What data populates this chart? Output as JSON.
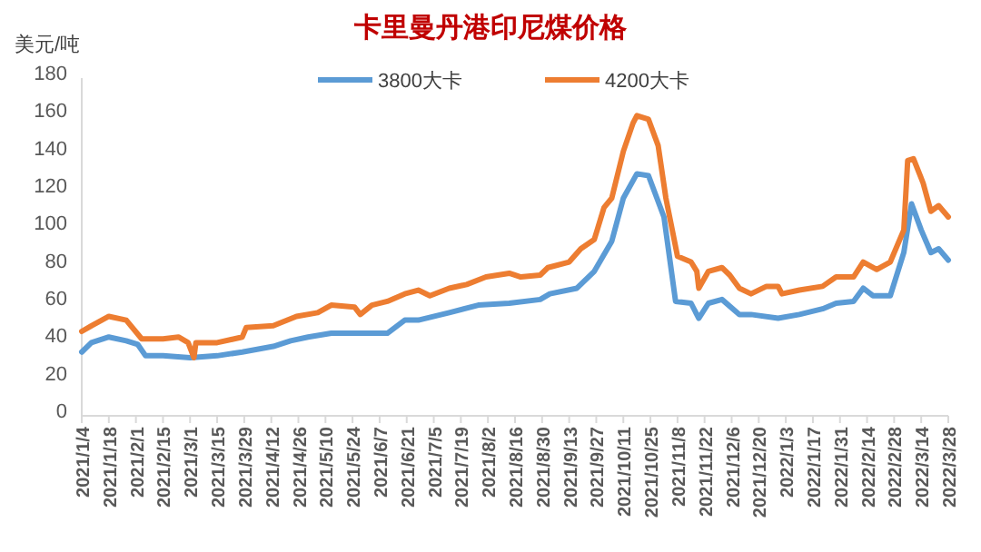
{
  "chart_data": {
    "type": "line",
    "title": "卡里曼丹港印尼煤价格",
    "ylabel": "美元/吨",
    "legend": "top",
    "grid": false,
    "marker": "none",
    "line_style": "solid",
    "ylim": [
      0,
      180
    ],
    "yticks": [
      0,
      20,
      40,
      60,
      80,
      100,
      120,
      140,
      160,
      180
    ],
    "xlim": [
      "2021-01-04",
      "2022-03-28"
    ],
    "xticks": [
      {
        "value": "2021-01-04",
        "label": "2021/1/4"
      },
      {
        "value": "2021-01-18",
        "label": "2021/1/18"
      },
      {
        "value": "2021-02-01",
        "label": "2021/2/1"
      },
      {
        "value": "2021-02-15",
        "label": "2021/2/15"
      },
      {
        "value": "2021-03-01",
        "label": "2021/3/1"
      },
      {
        "value": "2021-03-15",
        "label": "2021/3/15"
      },
      {
        "value": "2021-03-29",
        "label": "2021/3/29"
      },
      {
        "value": "2021-04-12",
        "label": "2021/4/12"
      },
      {
        "value": "2021-04-26",
        "label": "2021/4/26"
      },
      {
        "value": "2021-05-10",
        "label": "2021/5/10"
      },
      {
        "value": "2021-05-24",
        "label": "2021/5/24"
      },
      {
        "value": "2021-06-07",
        "label": "2021/6/7"
      },
      {
        "value": "2021-06-21",
        "label": "2021/6/21"
      },
      {
        "value": "2021-07-05",
        "label": "2021/7/5"
      },
      {
        "value": "2021-07-19",
        "label": "2021/7/19"
      },
      {
        "value": "2021-08-02",
        "label": "2021/8/2"
      },
      {
        "value": "2021-08-16",
        "label": "2021/8/16"
      },
      {
        "value": "2021-08-30",
        "label": "2021/8/30"
      },
      {
        "value": "2021-09-13",
        "label": "2021/9/13"
      },
      {
        "value": "2021-09-27",
        "label": "2021/9/27"
      },
      {
        "value": "2021-10-11",
        "label": "2021/10/11"
      },
      {
        "value": "2021-10-25",
        "label": "2021/10/25"
      },
      {
        "value": "2021-11-08",
        "label": "2021/11/8"
      },
      {
        "value": "2021-11-22",
        "label": "2021/11/22"
      },
      {
        "value": "2021-12-06",
        "label": "2021/12/6"
      },
      {
        "value": "2021-12-20",
        "label": "2021/12/20"
      },
      {
        "value": "2022-01-03",
        "label": "2022/1/3"
      },
      {
        "value": "2022-01-17",
        "label": "2022/1/17"
      },
      {
        "value": "2022-01-31",
        "label": "2022/1/31"
      },
      {
        "value": "2022-02-14",
        "label": "2022/2/14"
      },
      {
        "value": "2022-02-28",
        "label": "2022/2/28"
      },
      {
        "value": "2022-03-14",
        "label": "2022/3/14"
      },
      {
        "value": "2022-03-28",
        "label": "2022/3/28"
      }
    ],
    "series": [
      {
        "name": "3800大卡",
        "color": "#5b9bd5",
        "x": [
          "2021-01-04",
          "2021-01-09",
          "2021-01-18",
          "2021-01-27",
          "2021-02-02",
          "2021-02-06",
          "2021-02-15",
          "2021-03-01",
          "2021-03-15",
          "2021-03-28",
          "2021-04-13",
          "2021-04-22",
          "2021-05-01",
          "2021-05-13",
          "2021-06-11",
          "2021-06-20",
          "2021-06-27",
          "2021-07-13",
          "2021-07-28",
          "2021-08-13",
          "2021-08-29",
          "2021-09-03",
          "2021-09-17",
          "2021-09-26",
          "2021-10-05",
          "2021-10-11",
          "2021-10-18",
          "2021-10-24",
          "2021-11-01",
          "2021-11-07",
          "2021-11-15",
          "2021-11-19",
          "2021-11-24",
          "2021-12-01",
          "2021-12-10",
          "2021-12-16",
          "2021-12-30",
          "2022-01-10",
          "2022-01-22",
          "2022-01-29",
          "2022-02-07",
          "2022-02-12",
          "2022-02-17",
          "2022-02-26",
          "2022-03-05",
          "2022-03-09",
          "2022-03-14",
          "2022-03-19",
          "2022-03-23",
          "2022-03-28"
        ],
        "values": [
          34,
          39,
          42,
          40,
          38,
          32,
          32,
          31,
          32,
          34,
          37,
          40,
          42,
          44,
          44,
          51,
          51,
          55,
          59,
          60,
          62,
          65,
          68,
          77,
          93,
          116,
          129,
          128,
          106,
          61,
          60,
          52,
          60,
          62,
          54,
          54,
          52,
          54,
          57,
          60,
          61,
          68,
          64,
          64,
          87,
          113,
          99,
          87,
          89,
          83
        ]
      },
      {
        "name": "4200大卡",
        "color": "#ed7d31",
        "x": [
          "2021-01-04",
          "2021-01-09",
          "2021-01-18",
          "2021-01-27",
          "2021-02-04",
          "2021-02-15",
          "2021-02-23",
          "2021-02-28",
          "2021-03-03",
          "2021-03-04",
          "2021-03-15",
          "2021-03-28",
          "2021-03-30",
          "2021-04-13",
          "2021-04-25",
          "2021-05-06",
          "2021-05-13",
          "2021-05-25",
          "2021-05-28",
          "2021-06-03",
          "2021-06-11",
          "2021-06-20",
          "2021-06-27",
          "2021-07-03",
          "2021-07-13",
          "2021-07-22",
          "2021-08-01",
          "2021-08-13",
          "2021-08-19",
          "2021-08-29",
          "2021-09-02",
          "2021-09-13",
          "2021-09-19",
          "2021-09-26",
          "2021-10-01",
          "2021-10-05",
          "2021-10-11",
          "2021-10-16",
          "2021-10-18",
          "2021-10-24",
          "2021-10-29",
          "2021-11-02",
          "2021-11-08",
          "2021-11-15",
          "2021-11-18",
          "2021-11-19",
          "2021-11-24",
          "2021-12-01",
          "2021-12-05",
          "2021-12-10",
          "2021-12-16",
          "2021-12-24",
          "2021-12-30",
          "2022-01-01",
          "2022-01-10",
          "2022-01-22",
          "2022-01-29",
          "2022-02-07",
          "2022-02-12",
          "2022-02-19",
          "2022-02-26",
          "2022-03-05",
          "2022-03-07",
          "2022-03-10",
          "2022-03-15",
          "2022-03-19",
          "2022-03-23",
          "2022-03-28"
        ],
        "values": [
          45,
          48,
          53,
          51,
          41,
          41,
          42,
          39,
          31,
          39,
          39,
          42,
          47,
          48,
          53,
          55,
          59,
          58,
          54,
          59,
          61,
          65,
          67,
          64,
          68,
          70,
          74,
          76,
          74,
          75,
          79,
          82,
          89,
          94,
          111,
          116,
          141,
          156,
          160,
          158,
          144,
          116,
          85,
          82,
          77,
          68,
          77,
          79,
          75,
          68,
          65,
          69,
          69,
          65,
          67,
          69,
          74,
          74,
          82,
          78,
          82,
          99,
          136,
          137,
          124,
          109,
          112,
          106
        ]
      }
    ]
  }
}
